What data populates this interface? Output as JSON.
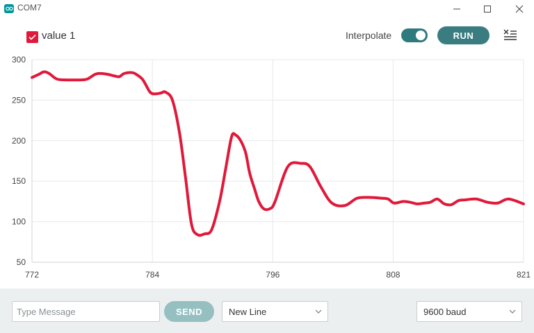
{
  "window": {
    "title": "COM7"
  },
  "toolbar": {
    "series_label": "value 1",
    "interpolate_label": "Interpolate",
    "interpolate_on": true,
    "run_label": "RUN"
  },
  "bottom": {
    "message_placeholder": "Type Message",
    "send_label": "SEND",
    "line_ending": "New Line",
    "baud": "9600 baud"
  },
  "colors": {
    "series": "#e0193a",
    "accent": "#3a7d81"
  },
  "icons": [
    "app-logo-icon",
    "minimize-icon",
    "maximize-icon",
    "close-icon",
    "check-icon",
    "clear-icon",
    "chevron-down-icon"
  ],
  "chart_data": {
    "type": "line",
    "xlim": [
      772,
      821
    ],
    "ylim": [
      50,
      300
    ],
    "xticks": [
      772,
      784,
      796,
      808,
      821
    ],
    "yticks": [
      50,
      100,
      150,
      200,
      250,
      300
    ],
    "grid": true,
    "series": [
      {
        "name": "value 1",
        "x": [
          772,
          772.7,
          773.2,
          773.7,
          774.5,
          775.5,
          776.3,
          776.8,
          777.5,
          778.3,
          778.8,
          779.5,
          780.2,
          780.7,
          781.2,
          782,
          782.5,
          783,
          783.3,
          783.7,
          784,
          784.5,
          784.9,
          785.3,
          786,
          786.7,
          787.3,
          787.9,
          788.5,
          789.2,
          789.9,
          790.7,
          791.3,
          791.9,
          792.3,
          792.8,
          793.3,
          793.7,
          794.2,
          794.6,
          795.1,
          795.7,
          796.2,
          797.5,
          798.8,
          799.7,
          800.8,
          801.9,
          803.2,
          804.4,
          805.6,
          806.9,
          807.5,
          808.1,
          809,
          809.7,
          810.4,
          811.1,
          811.7,
          812.4,
          813.1,
          813.8,
          814.5,
          815.2,
          816.3,
          817.4,
          818.4,
          819.5,
          821
        ],
        "y": [
          278,
          282,
          285,
          283,
          276,
          275,
          275,
          275,
          276,
          282,
          283,
          282,
          280,
          279,
          283,
          284,
          281,
          276,
          270,
          261,
          258,
          258,
          259,
          260,
          250,
          210,
          155,
          97,
          84,
          85,
          90,
          125,
          165,
          205,
          207,
          200,
          185,
          160,
          140,
          125,
          116,
          116,
          124,
          168,
          172,
          168,
          143,
          123,
          120,
          129,
          130,
          129,
          128,
          123,
          125,
          124,
          122,
          123,
          124,
          128,
          122,
          121,
          126,
          127,
          128,
          124,
          123,
          128,
          122
        ]
      }
    ]
  }
}
